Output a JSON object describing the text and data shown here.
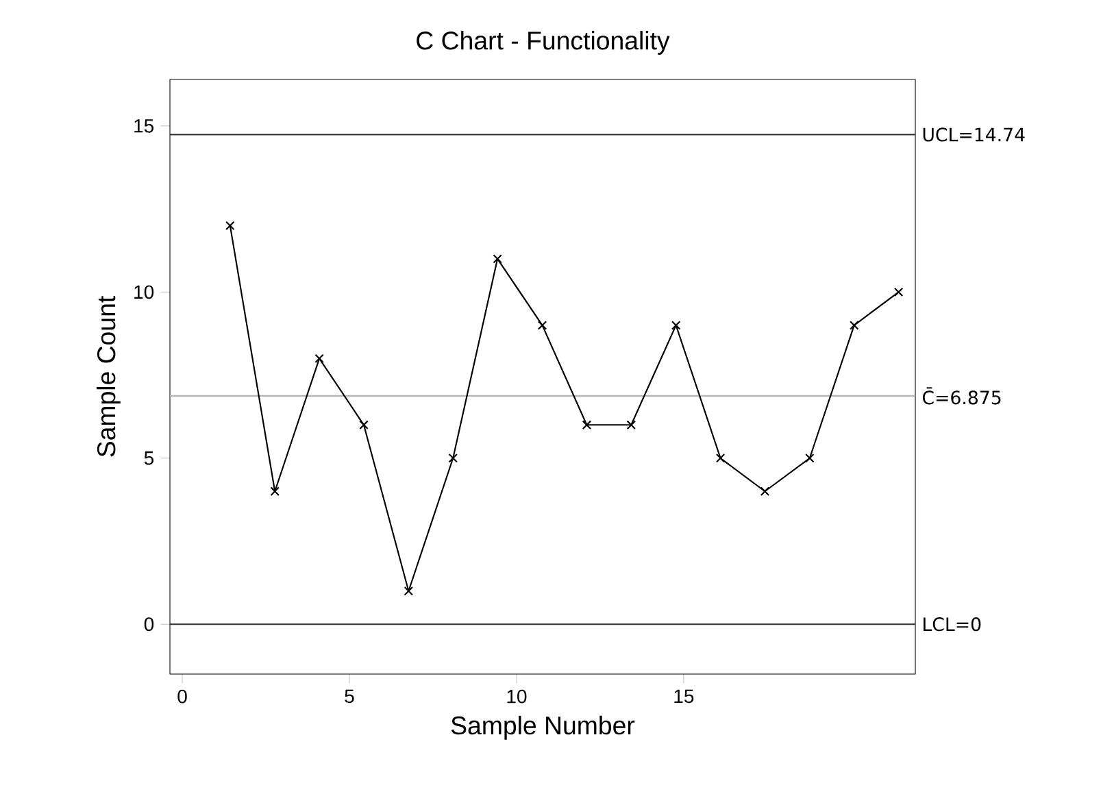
{
  "chart_data": {
    "type": "line",
    "title": "C Chart - Functionality",
    "xlabel": "Sample Number",
    "ylabel": "Sample Count",
    "x": [
      1.43,
      2.77,
      4.1,
      5.43,
      6.77,
      8.1,
      9.43,
      10.77,
      12.1,
      13.43,
      14.77,
      16.1,
      17.43,
      18.77,
      20.1,
      21.43
    ],
    "series": [
      {
        "color": "#000000",
        "values": [
          12,
          4,
          8,
          6,
          1,
          5,
          11,
          9,
          6,
          6,
          9,
          5,
          4,
          5,
          9,
          10
        ]
      }
    ],
    "xlim": [
      -0.37,
      21.93
    ],
    "ylim": [
      -1.5,
      16.4
    ],
    "xticks": [
      0,
      5,
      10,
      15
    ],
    "yticks": [
      0,
      5,
      10,
      15
    ],
    "ref_lines": [
      {
        "axis": "y",
        "value": 14.74,
        "label": "UCL=14.74",
        "color": "#303030"
      },
      {
        "axis": "y",
        "value": 6.875,
        "label": "C̄=6.875",
        "color": "#b4b4b4"
      },
      {
        "axis": "y",
        "value": 0,
        "label": "LCL=0",
        "color": "#303030"
      }
    ],
    "grid": false,
    "marker": "cross",
    "line_style": "solid"
  }
}
